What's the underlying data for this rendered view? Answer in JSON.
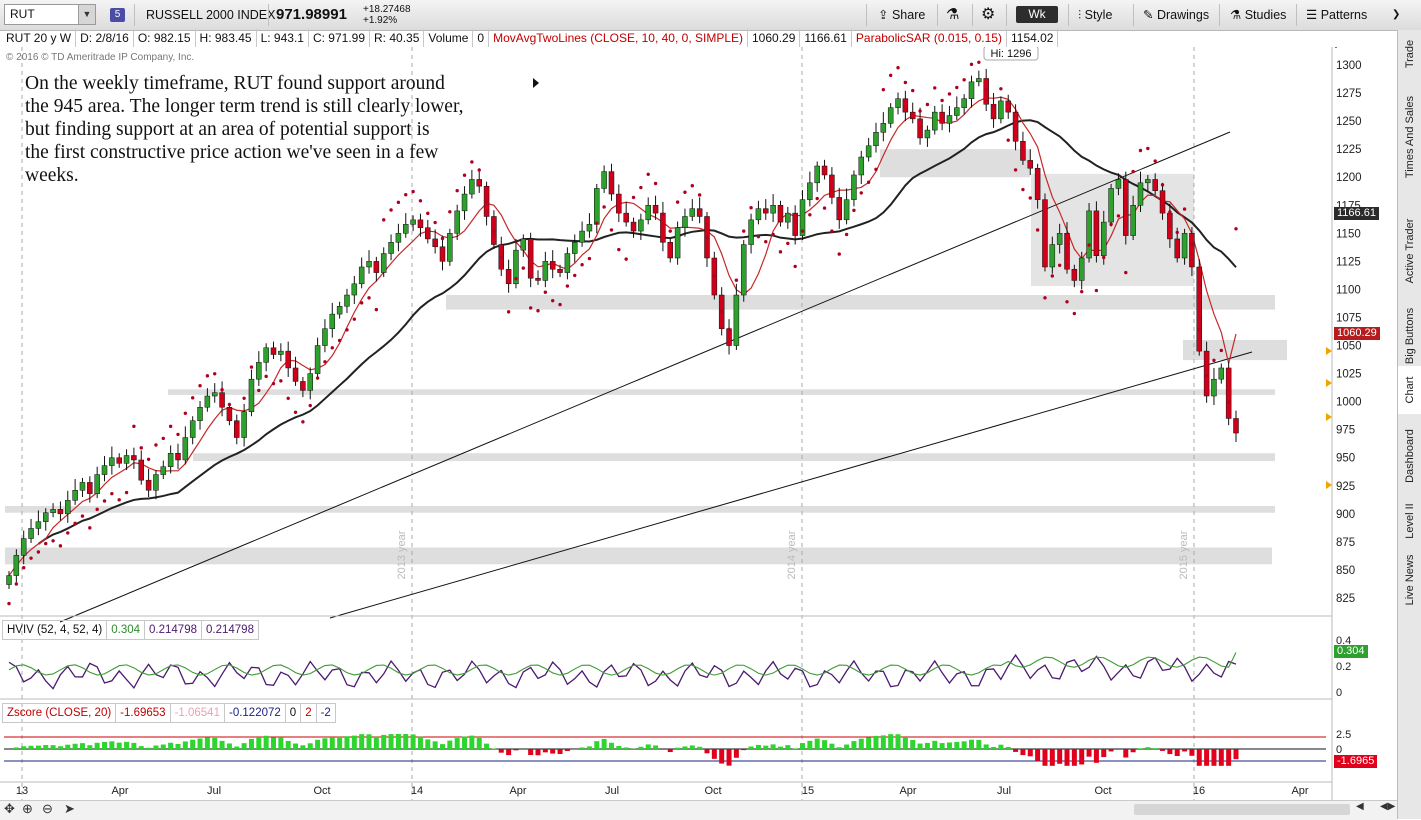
{
  "toolbar": {
    "symbol": "RUT",
    "badge": "5",
    "index_name": "RUSSELL 2000 INDEX",
    "last_price": "971.98991",
    "change": "+18.27468",
    "change_pct": "+1.92%",
    "share": "Share",
    "timeframe": "Wk",
    "style": "Style",
    "drawings": "Drawings",
    "studies": "Studies",
    "patterns": "Patterns"
  },
  "infobar": {
    "period": "RUT 20 y W",
    "date": "D: 2/8/16",
    "open": "O: 982.15",
    "high": "H: 983.45",
    "low": "L: 943.1",
    "close": "C: 971.99",
    "range": "R: 40.35",
    "volume_label": "Volume",
    "volume": "0",
    "ma_study": "MovAvgTwoLines (CLOSE, 10, 40, 0, SIMPLE)",
    "ma_fast": "1060.29",
    "ma_slow": "1166.61",
    "sar_study": "ParabolicSAR (0.015, 0.15)",
    "sar_value": "1154.02"
  },
  "copyright": "2016 © TD Ameritrade IP Company, Inc.",
  "annotation": "On the weekly timeframe, RUT found support around\nthe 945 area.  The longer term trend is still clearly lower,\nbut finding support at an area of potential support is\nthe first constructive price action we've seen in a few\nweeks.",
  "hi_label": "Hi: 1296",
  "price_tags": {
    "slow": "1166.61",
    "fast": "1060.29",
    "hviv": "0.304",
    "zscore": "-1.6965"
  },
  "hviv": {
    "label": "HVIV (52, 4, 52, 4)",
    "v1": "0.304",
    "v2": "0.214798",
    "v3": "0.214798",
    "ticks": [
      "0.4",
      "0.2",
      "0"
    ]
  },
  "zscore": {
    "label": "Zscore (CLOSE, 20)",
    "v1": "-1.69653",
    "v2": "-1.06541",
    "v3": "-0.122072",
    "v4": "0",
    "v5": "2",
    "v6": "-2",
    "ticks": [
      "2.5",
      "0",
      "-2.5"
    ]
  },
  "sidebar": [
    "Trade",
    "Times And Sales",
    "Active Trader",
    "Big Buttons",
    "Chart",
    "Dashboard",
    "Level II",
    "Live News"
  ],
  "sidebar_active": "Chart",
  "colors": {
    "up": "#2ea02e",
    "down": "#d0001a",
    "sar": "#b00020",
    "ma_fast": "#c62828",
    "ma_slow": "#222222",
    "zone": "#dedede",
    "hv": "#3d9b33",
    "iv": "#4b1a6e"
  },
  "chart_data": {
    "type": "candlestick",
    "title": "RUSSELL 2000 INDEX",
    "timeframe": "Weekly",
    "ylim": [
      810,
      1310
    ],
    "y_ticks": [
      825,
      850,
      875,
      900,
      925,
      950,
      975,
      1000,
      1025,
      1050,
      1075,
      1100,
      1125,
      1150,
      1175,
      1200,
      1225,
      1250,
      1275,
      1300
    ],
    "x_tick_labels": [
      "13",
      "Apr",
      "Jul",
      "Oct",
      "14",
      "Apr",
      "Jul",
      "Oct",
      "15",
      "Apr",
      "Jul",
      "Oct",
      "16",
      "Apr"
    ],
    "year_separators": [
      "2013 year",
      "2014 year",
      "2015 year"
    ],
    "close": [
      845,
      863,
      878,
      887,
      893,
      901,
      904,
      900,
      912,
      921,
      928,
      918,
      935,
      943,
      950,
      945,
      952,
      948,
      930,
      921,
      935,
      942,
      954,
      948,
      968,
      983,
      995,
      1005,
      1008,
      995,
      983,
      968,
      991,
      1020,
      1035,
      1048,
      1042,
      1045,
      1030,
      1018,
      1010,
      1025,
      1050,
      1065,
      1078,
      1085,
      1095,
      1105,
      1120,
      1125,
      1115,
      1132,
      1142,
      1150,
      1158,
      1162,
      1155,
      1145,
      1138,
      1125,
      1150,
      1170,
      1185,
      1198,
      1192,
      1165,
      1140,
      1118,
      1105,
      1135,
      1145,
      1110,
      1108,
      1125,
      1118,
      1115,
      1132,
      1142,
      1152,
      1158,
      1190,
      1205,
      1185,
      1168,
      1160,
      1152,
      1162,
      1175,
      1168,
      1142,
      1128,
      1155,
      1165,
      1172,
      1165,
      1128,
      1095,
      1065,
      1050,
      1095,
      1140,
      1162,
      1172,
      1168,
      1175,
      1160,
      1168,
      1148,
      1180,
      1195,
      1210,
      1202,
      1182,
      1162,
      1180,
      1202,
      1218,
      1228,
      1240,
      1248,
      1262,
      1270,
      1258,
      1252,
      1235,
      1242,
      1258,
      1248,
      1255,
      1262,
      1270,
      1285,
      1288,
      1265,
      1252,
      1268,
      1258,
      1232,
      1215,
      1208,
      1180,
      1120,
      1140,
      1150,
      1118,
      1108,
      1128,
      1170,
      1130,
      1160,
      1190,
      1198,
      1148,
      1175,
      1195,
      1198,
      1188,
      1168,
      1145,
      1128,
      1150,
      1120,
      1045,
      1005,
      1020,
      1030,
      985,
      972
    ],
    "ma_fast_last": 1060.29,
    "ma_slow_last": 1166.61,
    "sar_last": 1154.02,
    "high_marker": 1296,
    "support_zones": [
      [
        1200,
        1225
      ],
      [
        1080,
        1095
      ],
      [
        1035,
        1055
      ],
      [
        1005,
        1010
      ],
      [
        945,
        953
      ],
      [
        900,
        907
      ],
      [
        855,
        871
      ]
    ],
    "subplots": [
      {
        "name": "HVIV (52, 4, 52, 4)",
        "ylim": [
          0,
          0.4
        ],
        "last": 0.304
      },
      {
        "name": "Zscore (CLOSE, 20)",
        "ylim": [
          -2.5,
          2.5
        ],
        "last": -1.69653
      }
    ]
  }
}
